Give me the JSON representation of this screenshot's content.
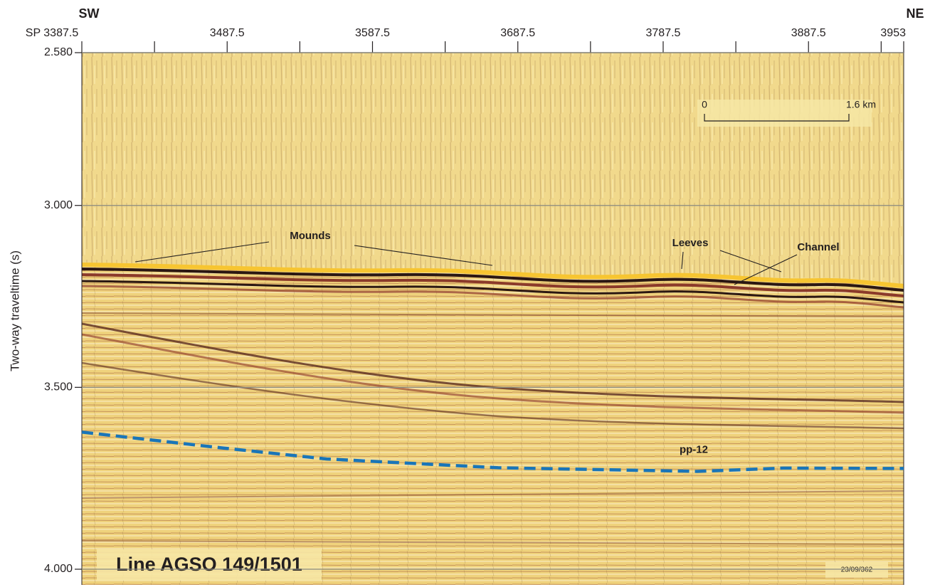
{
  "chart_data": {
    "type": "seismic-section",
    "left_direction": "SW",
    "right_direction": "NE",
    "ylabel": "Two-way traveltime (s)",
    "xlim": [
      3387.5,
      3953
    ],
    "xticks": [
      {
        "value": 3387.5,
        "label": "SP 3387.5"
      },
      3487.5,
      3587.5,
      3687.5,
      3787.5,
      3887.5,
      3953
    ],
    "xminorticks": [
      3437.5,
      3537.5,
      3637.5,
      3737.5,
      3837.5,
      3937.5
    ],
    "ylim": [
      2.58,
      4.0
    ],
    "y_inverted": true,
    "yticks": [
      {
        "value": 2.58,
        "label": "2.580"
      },
      {
        "value": 3.0,
        "label": "3.000"
      },
      {
        "value": 3.5,
        "label": "3.500"
      },
      {
        "value": 4.0,
        "label": "4.000"
      }
    ],
    "grid": true,
    "series": [
      {
        "name": "pp-12",
        "color": "#1a75b8",
        "dashed": true,
        "x": [
          3387.5,
          3478,
          3556,
          3674,
          3811,
          3870,
          3953
        ],
        "values": [
          3.623,
          3.664,
          3.697,
          3.721,
          3.731,
          3.722,
          3.723
        ]
      }
    ],
    "annotations": [
      "Mounds",
      "Leeves",
      "Channel"
    ],
    "line_name": "Line AGSO 149/1501",
    "figure_code": "23/09/362",
    "scale_bar": {
      "start_label": "0",
      "end_label": "1.6 km"
    }
  }
}
